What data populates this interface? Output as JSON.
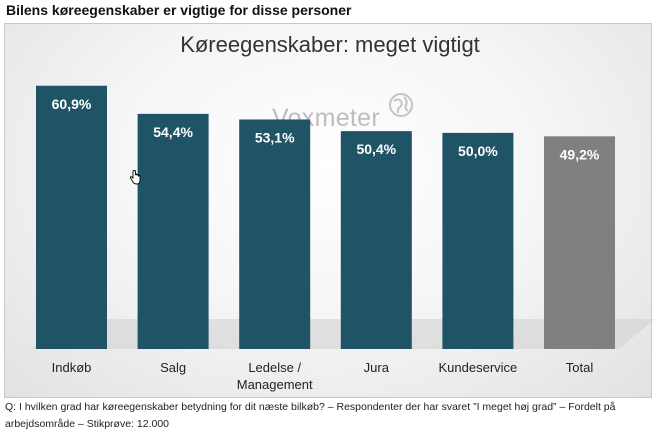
{
  "heading": "Bilens køreegenskaber er vigtige for disse personer",
  "watermark": "Voxmeter",
  "question": "Q: I hvilken grad har køreegenskaber betydning for dit næste bilkøb? – Respondenter der har svaret ”I meget høj grad” – Fordelt på arbejdsområde – Stikprøve: 12.000",
  "colors": {
    "bar": "#1f5466",
    "total_bar": "#808080",
    "label": "#ffffff"
  },
  "chart_data": {
    "type": "bar",
    "title": "Køreegenskaber: meget vigtigt",
    "categories": [
      [
        "Indkøb"
      ],
      [
        "Salg"
      ],
      [
        "Ledelse /",
        "Management"
      ],
      [
        "Jura"
      ],
      [
        "Kundeservice"
      ],
      [
        "Total"
      ]
    ],
    "values": [
      60.9,
      54.4,
      53.1,
      50.4,
      50.0,
      49.2
    ],
    "value_labels": [
      "60,9%",
      "54,4%",
      "53,1%",
      "50,4%",
      "50,0%",
      "49,2%"
    ],
    "highlight_last": true,
    "ylim": [
      0,
      62
    ],
    "grid": false,
    "legend": "none",
    "xlabel": "",
    "ylabel": ""
  }
}
